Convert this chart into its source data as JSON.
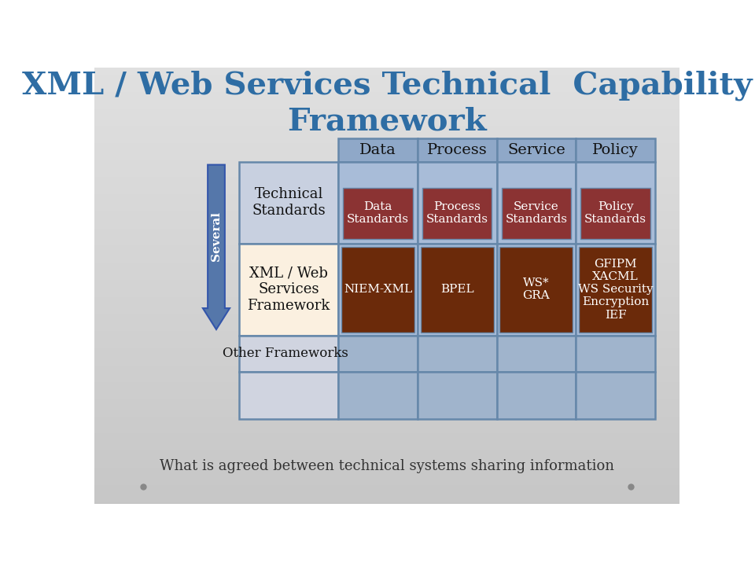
{
  "title": "XML / Web Services Technical  Capability\nFramework",
  "title_color": "#2E6DA4",
  "background_color": "#CCCCCC",
  "subtitle": "What is agreed between technical systems sharing information",
  "columns": [
    "Data",
    "Process",
    "Service",
    "Policy"
  ],
  "rows": [
    "Technical\nStandards",
    "XML / Web\nServices\nFramework",
    "Other Frameworks"
  ],
  "header_bg": "#8FA8C8",
  "ts_cell_bg": "#A8BCD8",
  "ts_inner_bg": "#8B3333",
  "ts_inner_texts": [
    "Data\nStandards",
    "Process\nStandards",
    "Service\nStandards",
    "Policy\nStandards"
  ],
  "xml_row_label_bg": "#FBF0E0",
  "xml_cell_bg": "#6B2A0A",
  "xml_inner_texts": [
    "NIEM-XML",
    "BPEL",
    "WS*\nGRA",
    "GFIPM\nXACML\nWS Security\nEncryption\nIEF"
  ],
  "other_cell_bg": "#A0B4CC",
  "ts_label_bg": "#C8D0E0",
  "other_label_bg": "#D0D4E0",
  "blank_cell_bg": "#A0B4CC",
  "blank_label_bg": "#D0D4E0",
  "arrow_color": "#5577AA",
  "arrow_edge_color": "#3355AA",
  "arrow_label": "Several",
  "cell_text_color": "#FFFFFF",
  "border_color": "#6688AA",
  "subtitle_color": "#333333",
  "dot_color": "#888888"
}
